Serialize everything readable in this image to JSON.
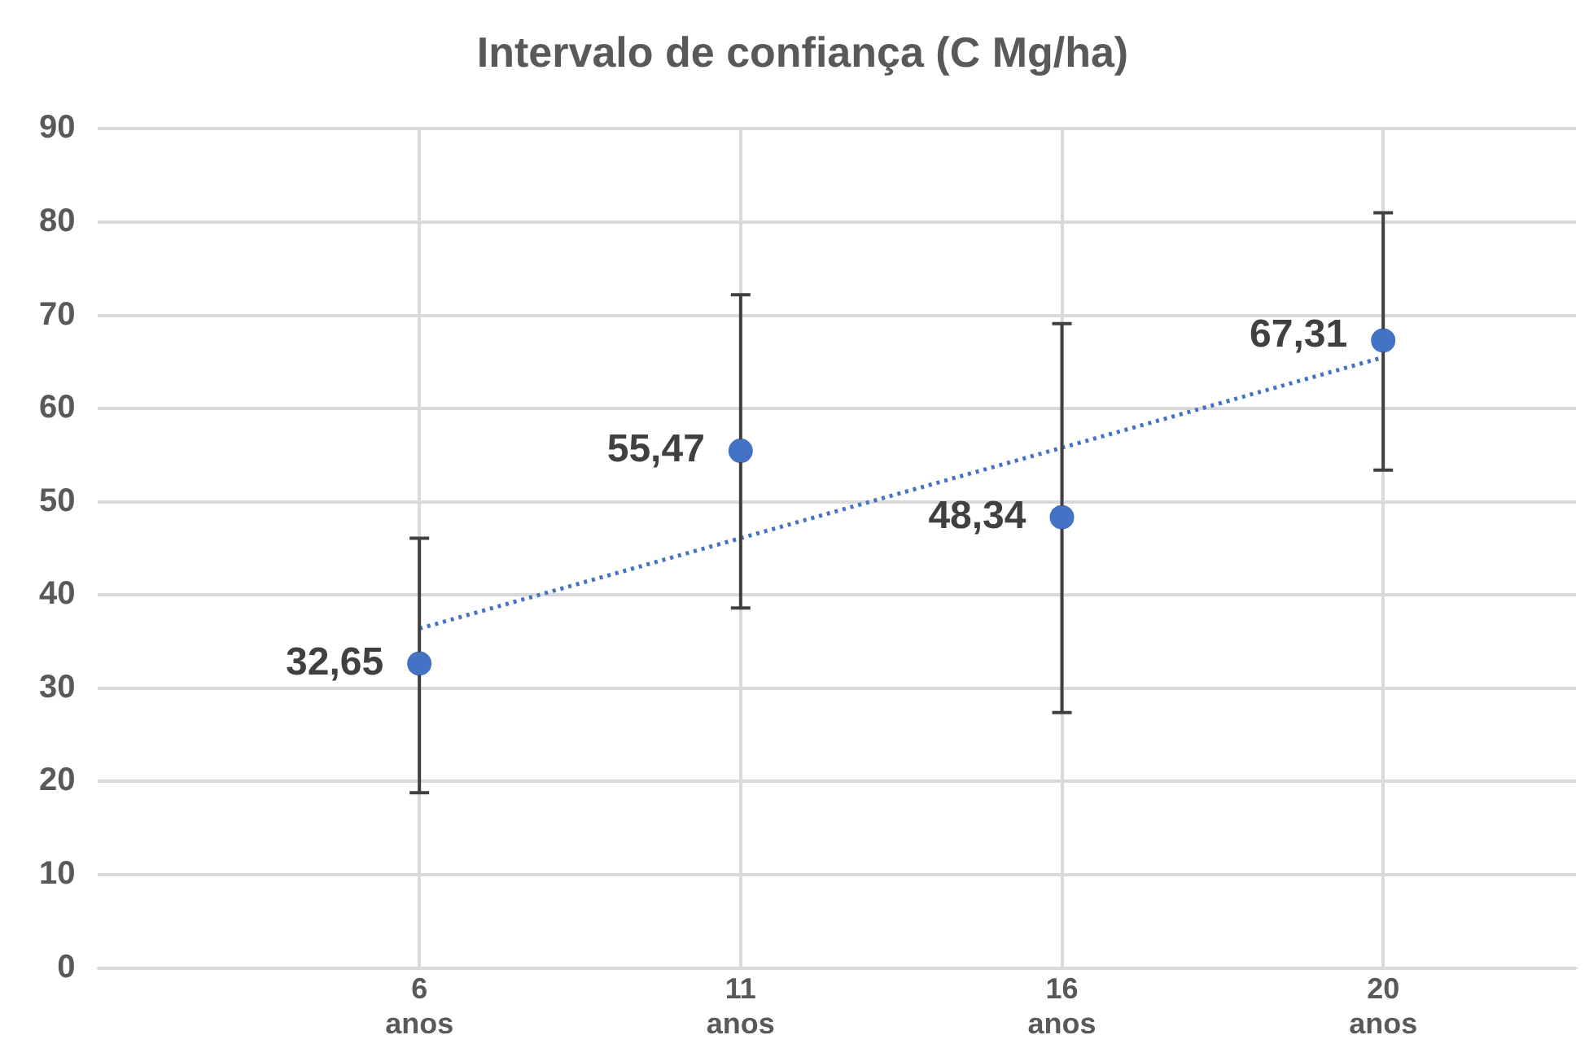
{
  "chart_data": {
    "type": "scatter",
    "title": "Intervalo de confiança (C Mg/ha)",
    "categories": [
      "6 anos",
      "11 anos",
      "16 anos",
      "20 anos"
    ],
    "series": [
      {
        "color": "#4472c4",
        "values": [
          32.65,
          55.47,
          48.34,
          67.31
        ],
        "errors": [
          [
            18.8,
            46.1
          ],
          [
            38.6,
            72.2
          ],
          [
            27.4,
            69.1
          ],
          [
            53.4,
            81.0
          ]
        ],
        "value_labels": [
          "32,65",
          "55,47",
          "48,34",
          "67,31"
        ]
      },
      {
        "type": "line",
        "color": "#4472c4",
        "x": [
          "6 anos",
          "20 anos"
        ],
        "values": [
          36.4,
          65.5
        ],
        "line_style": "dotted",
        "marker": "none"
      }
    ],
    "ylim": [
      0,
      90
    ],
    "yticks": [
      0,
      10,
      20,
      30,
      40,
      50,
      60,
      70,
      80,
      90
    ],
    "grid": true,
    "legend": false,
    "marker": "circle"
  }
}
